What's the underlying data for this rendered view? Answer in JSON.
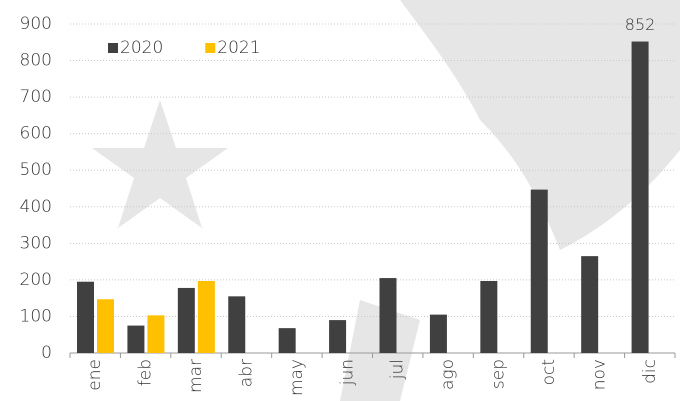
{
  "chart_data": {
    "type": "bar",
    "categories": [
      "ene",
      "feb",
      "mar",
      "abr",
      "may",
      "jun",
      "jul",
      "ago",
      "sep",
      "oct",
      "nov",
      "dic"
    ],
    "series": [
      {
        "name": "2020",
        "color": "#404040",
        "values": [
          195,
          75,
          178,
          155,
          68,
          90,
          205,
          105,
          197,
          447,
          265,
          852
        ]
      },
      {
        "name": "2021",
        "color": "#ffc000",
        "values": [
          147,
          103,
          197,
          null,
          null,
          null,
          null,
          null,
          null,
          null,
          null,
          null
        ]
      }
    ],
    "ylim": [
      0,
      900
    ],
    "yticks": [
      0,
      100,
      200,
      300,
      400,
      500,
      600,
      700,
      800,
      900
    ],
    "grid": true,
    "legend": "top-left"
  }
}
